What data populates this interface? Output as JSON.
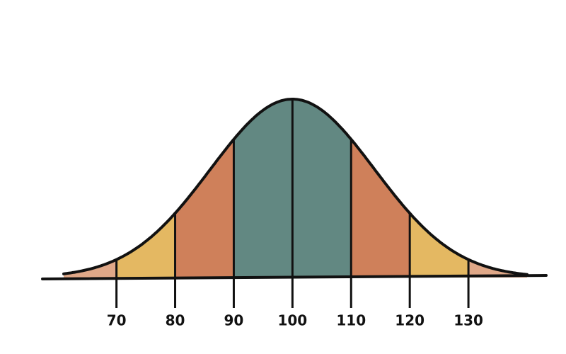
{
  "chart_data": {
    "type": "bell",
    "mean": 100,
    "sd": 14,
    "xlim": [
      61,
      140
    ],
    "xticks": [
      70,
      80,
      90,
      100,
      110,
      120,
      130
    ],
    "band_colors": [
      "#e0a888",
      "#e4b862",
      "#cf805a",
      "#628882",
      "#628882",
      "#cf805a",
      "#e4b862",
      "#e0a888"
    ]
  }
}
